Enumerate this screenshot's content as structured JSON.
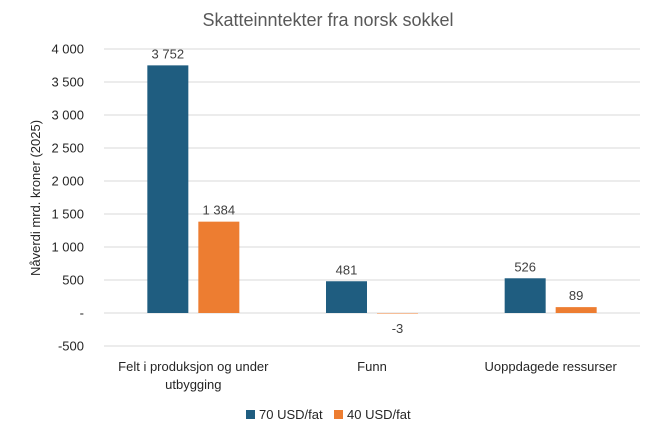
{
  "chart_data": {
    "type": "bar",
    "title": "Skatteinntekter fra norsk sokkel",
    "ylabel": "Nåverdi mrd. kroner (2025)",
    "xlabel": "",
    "categories": [
      [
        "Felt i produksjon og under",
        "utbygging"
      ],
      [
        "Funn"
      ],
      [
        "Uoppdagede ressurser"
      ]
    ],
    "series": [
      {
        "name": "70 USD/fat",
        "color": "#1f5d80",
        "values": [
          3752,
          481,
          526
        ],
        "labels": [
          "3 752",
          "481",
          "526"
        ]
      },
      {
        "name": "40 USD/fat",
        "color": "#ed7d31",
        "values": [
          1384,
          -3,
          89
        ],
        "labels": [
          "1 384",
          "-3",
          "89"
        ]
      }
    ],
    "ylim": [
      -500,
      4000
    ],
    "yticks": [
      -500,
      0,
      500,
      1000,
      1500,
      2000,
      2500,
      3000,
      3500,
      4000
    ],
    "ytick_labels": [
      "-500",
      "-",
      "500",
      "1 000",
      "1 500",
      "2 000",
      "2 500",
      "3 000",
      "3 500",
      "4 000"
    ],
    "grid": true,
    "legend_position": "bottom"
  }
}
